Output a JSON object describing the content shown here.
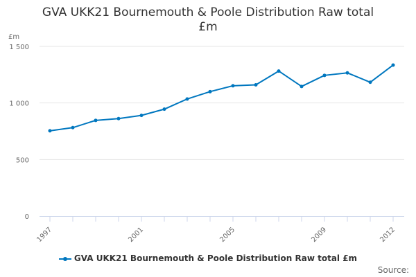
{
  "chart_data": {
    "type": "line",
    "title_lines": [
      "GVA UKK21 Bournemouth & Poole Distribution Raw total",
      "£m"
    ],
    "ylabel": "£m",
    "xlabel": "",
    "ylim": [
      0,
      1500
    ],
    "yticks": [
      0,
      500,
      1000,
      1500
    ],
    "ytick_labels": [
      "0",
      "500",
      "1 000",
      "1 500"
    ],
    "xtick_labels": [
      "1997",
      "2001",
      "2005",
      "2009",
      "2012"
    ],
    "grid": true,
    "legend_position": "bottom",
    "series": [
      {
        "name": "GVA UKK21 Bournemouth & Poole Distribution Raw total £m",
        "color": "#0077bf",
        "x": [
          1997,
          1998,
          1999,
          2000,
          2001,
          2002,
          2003,
          2004,
          2005,
          2006,
          2007,
          2008,
          2009,
          2010,
          2011,
          2012
        ],
        "values": [
          754,
          782,
          846,
          862,
          890,
          945,
          1035,
          1100,
          1152,
          1160,
          1282,
          1146,
          1244,
          1266,
          1183,
          1335
        ]
      }
    ]
  },
  "source_label": "Source:"
}
